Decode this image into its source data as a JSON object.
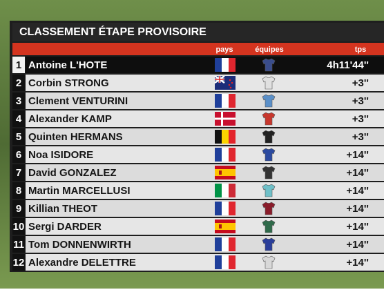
{
  "header": {
    "title": "CLASSEMENT ÉTAPE PROVISOIRE",
    "columns": [
      "pays",
      "équipes",
      "tps"
    ]
  },
  "table": {
    "rows": [
      {
        "rank": 1,
        "name": "Antoine L'HOTE",
        "time": "4h11'44''"
      },
      {
        "rank": 2,
        "name": "Corbin STRONG",
        "time": "+3''"
      },
      {
        "rank": 3,
        "name": "Clement VENTURINI",
        "time": "+3''"
      },
      {
        "rank": 4,
        "name": "Alexander KAMP",
        "time": "+3''"
      },
      {
        "rank": 5,
        "name": "Quinten HERMANS",
        "time": "+3''"
      },
      {
        "rank": 6,
        "name": "Noa ISIDORE",
        "time": "+14''"
      },
      {
        "rank": 7,
        "name": "David GONZALEZ",
        "time": "+14''"
      },
      {
        "rank": 8,
        "name": "Martin MARCELLUSI",
        "time": "+14''"
      },
      {
        "rank": 9,
        "name": "Killian THEOT",
        "time": "+14''"
      },
      {
        "rank": 10,
        "name": "Sergi DARDER",
        "time": "+14''"
      },
      {
        "rank": 11,
        "name": "Tom DONNENWIRTH",
        "time": "+14''"
      },
      {
        "rank": 12,
        "name": "Alexandre DELETTRE",
        "time": "+14''"
      }
    ]
  }
}
